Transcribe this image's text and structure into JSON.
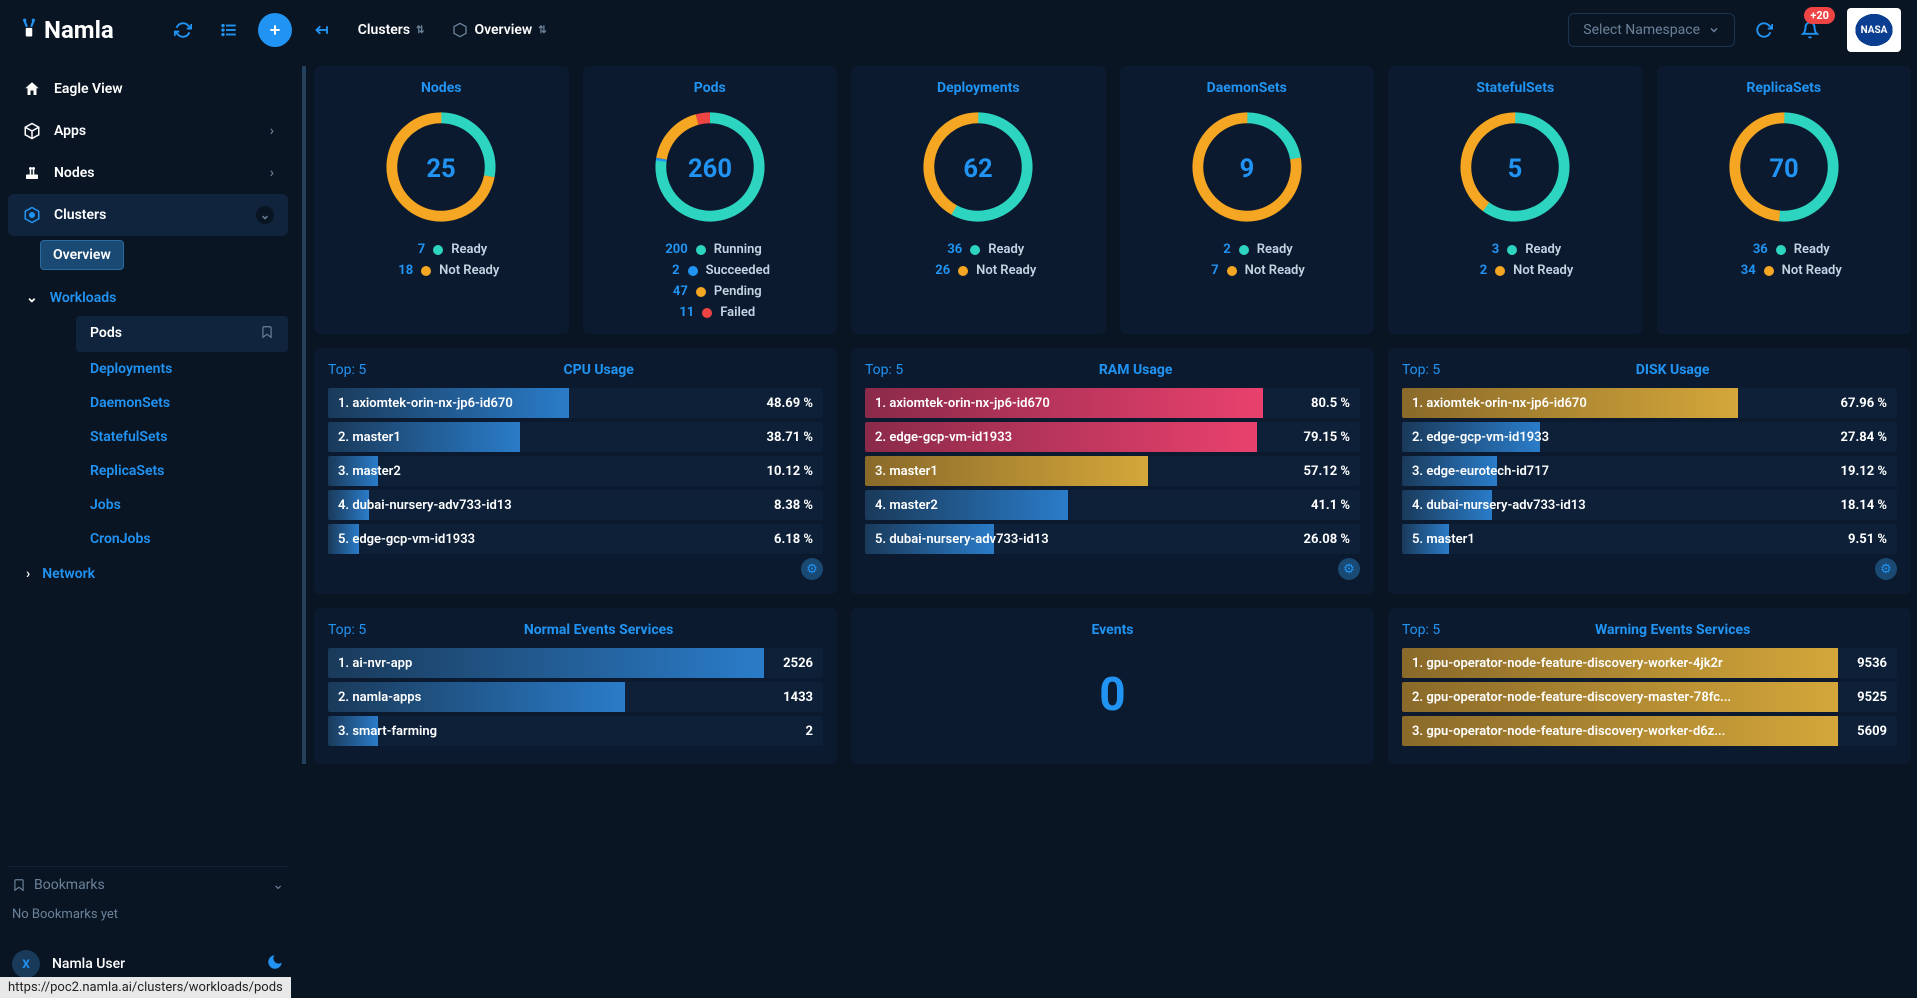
{
  "colors": {
    "blue": "#2194f3",
    "teal": "#2dd4bf",
    "orange": "#f5a623",
    "red": "#ef4444",
    "pink": "#e9416e",
    "gold": "#d4a73a",
    "card_bg": "#0b1a2e",
    "bar_blue_grad_start": "#1a3a5a",
    "bar_blue_grad_end": "#2a7cc9"
  },
  "topbar": {
    "logo": "Namla",
    "breadcrumb1": "Clusters",
    "breadcrumb2": "Overview",
    "namespace_placeholder": "Select Namespace",
    "notif_badge": "+20",
    "avatar_label": "NASA"
  },
  "sidebar": {
    "eagle_view": "Eagle View",
    "apps": "Apps",
    "nodes": "Nodes",
    "clusters": "Clusters",
    "overview": "Overview",
    "workloads": "Workloads",
    "workload_items": [
      "Pods",
      "Deployments",
      "DaemonSets",
      "StatefulSets",
      "ReplicaSets",
      "Jobs",
      "CronJobs"
    ],
    "network": "Network",
    "bookmarks": "Bookmarks",
    "no_bookmarks": "No Bookmarks yet",
    "user": "Namla User",
    "user_initial": "X"
  },
  "donuts": [
    {
      "title": "Nodes",
      "total": 25,
      "segments": [
        {
          "value": 7,
          "color": "#2dd4bf",
          "label": "Ready"
        },
        {
          "value": 18,
          "color": "#f5a623",
          "label": "Not Ready"
        }
      ]
    },
    {
      "title": "Pods",
      "total": 260,
      "segments": [
        {
          "value": 200,
          "color": "#2dd4bf",
          "label": "Running"
        },
        {
          "value": 2,
          "color": "#2194f3",
          "label": "Succeeded"
        },
        {
          "value": 47,
          "color": "#f5a623",
          "label": "Pending"
        },
        {
          "value": 11,
          "color": "#ef4444",
          "label": "Failed"
        }
      ]
    },
    {
      "title": "Deployments",
      "total": 62,
      "segments": [
        {
          "value": 36,
          "color": "#2dd4bf",
          "label": "Ready"
        },
        {
          "value": 26,
          "color": "#f5a623",
          "label": "Not Ready"
        }
      ]
    },
    {
      "title": "DaemonSets",
      "total": 9,
      "segments": [
        {
          "value": 2,
          "color": "#2dd4bf",
          "label": "Ready"
        },
        {
          "value": 7,
          "color": "#f5a623",
          "label": "Not Ready"
        }
      ]
    },
    {
      "title": "StatefulSets",
      "total": 5,
      "segments": [
        {
          "value": 3,
          "color": "#2dd4bf",
          "label": "Ready"
        },
        {
          "value": 2,
          "color": "#f5a623",
          "label": "Not Ready"
        }
      ]
    },
    {
      "title": "ReplicaSets",
      "total": 70,
      "segments": [
        {
          "value": 36,
          "color": "#2dd4bf",
          "label": "Ready"
        },
        {
          "value": 34,
          "color": "#f5a623",
          "label": "Not Ready"
        }
      ]
    }
  ],
  "usage_top_label": "Top: 5",
  "usage": [
    {
      "title": "CPU Usage",
      "mode": "blue",
      "rows": [
        {
          "label": "1. axiomtek-orin-nx-jp6-id670",
          "pct": 48.69
        },
        {
          "label": "2. master1",
          "pct": 38.71
        },
        {
          "label": "3. master2",
          "pct": 10.12
        },
        {
          "label": "4. dubai-nursery-adv733-id13",
          "pct": 8.38
        },
        {
          "label": "5. edge-gcp-vm-id1933",
          "pct": 6.18
        }
      ]
    },
    {
      "title": "RAM Usage",
      "mode": "heat",
      "rows": [
        {
          "label": "1. axiomtek-orin-nx-jp6-id670",
          "pct": 80.5
        },
        {
          "label": "2. edge-gcp-vm-id1933",
          "pct": 79.15
        },
        {
          "label": "3. master1",
          "pct": 57.12
        },
        {
          "label": "4. master2",
          "pct": 41.1
        },
        {
          "label": "5. dubai-nursery-adv733-id13",
          "pct": 26.08
        }
      ]
    },
    {
      "title": "DISK Usage",
      "mode": "heat",
      "rows": [
        {
          "label": "1. axiomtek-orin-nx-jp6-id670",
          "pct": 67.96
        },
        {
          "label": "2. edge-gcp-vm-id1933",
          "pct": 27.84
        },
        {
          "label": "3. edge-eurotech-id717",
          "pct": 19.12
        },
        {
          "label": "4. dubai-nursery-adv733-id13",
          "pct": 18.14
        },
        {
          "label": "5. master1",
          "pct": 9.51
        }
      ]
    }
  ],
  "events": {
    "normal_title": "Normal Events Services",
    "normal_rows": [
      {
        "label": "1. ai-nvr-app",
        "count": 2526
      },
      {
        "label": "2. namla-apps",
        "count": 1433
      },
      {
        "label": "3. smart-farming",
        "count": 2
      }
    ],
    "events_title": "Events",
    "events_count": 0,
    "warning_title": "Warning Events Services",
    "warning_rows": [
      {
        "label": "1. gpu-operator-node-feature-discovery-worker-4jk2r",
        "count": 9536
      },
      {
        "label": "2. gpu-operator-node-feature-discovery-master-78fc...",
        "count": 9525
      },
      {
        "label": "3. gpu-operator-node-feature-discovery-worker-d6z...",
        "count": 5609
      }
    ]
  },
  "statusbar": "https://poc2.namla.ai/clusters/workloads/pods"
}
